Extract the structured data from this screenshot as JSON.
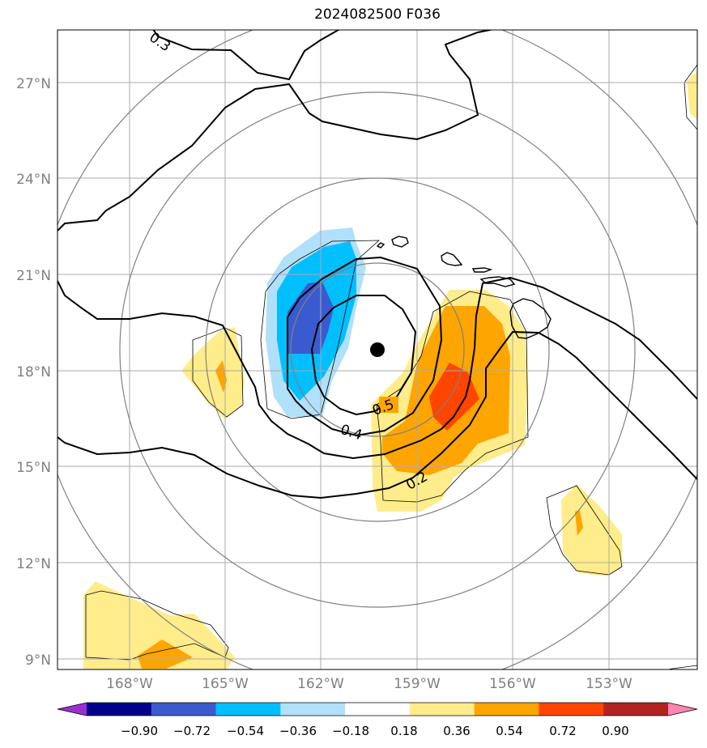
{
  "title": "2024082500 F036",
  "latitude_labels": [
    "27°N",
    "24°N",
    "21°N",
    "18°N",
    "15°N",
    "12°N",
    "9°N"
  ],
  "longitude_labels": [
    "168°W",
    "165°W",
    "162°W",
    "159°W",
    "156°W",
    "153°W"
  ],
  "contour_labels": [
    "0.3",
    "0.5",
    "0.4",
    "0.2"
  ],
  "colorbar": {
    "tick_labels": [
      "−0.90",
      "−0.72",
      "−0.54",
      "−0.36",
      "−0.18",
      "0.18",
      "0.36",
      "0.54",
      "0.72",
      "0.90"
    ],
    "colors": [
      "#9a2fd0",
      "#00008b",
      "#3a5bd0",
      "#00bfff",
      "#b0e0fa",
      "#ffffff",
      "#ffec8b",
      "#ffa500",
      "#ff4500",
      "#b22222",
      "#ff85b4"
    ]
  },
  "storm_center_marker": "black filled circle"
}
